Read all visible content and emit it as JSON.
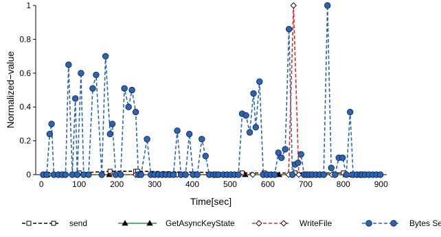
{
  "chart_data": {
    "type": "line",
    "title": "",
    "xlabel": "Time[sec]",
    "ylabel": "Normalized−value",
    "xlim": [
      -15,
      915
    ],
    "ylim": [
      0,
      1
    ],
    "xticks": [
      0,
      100,
      200,
      300,
      400,
      500,
      600,
      700,
      800,
      900
    ],
    "yticks": [
      0,
      0.2,
      0.4,
      0.6,
      0.8,
      1
    ],
    "ytick_labels": [
      "0",
      "0.2",
      "0.4",
      "0.6",
      "0.8",
      "1"
    ],
    "grid": false,
    "legend_position": "bottom",
    "series": [
      {
        "name": "send",
        "color": "#000000",
        "dash": "dashed",
        "marker": "square",
        "x": [
          100,
          182,
          250,
          255,
          532,
          590,
          672,
          800
        ],
        "y": [
          0.01,
          0.02,
          0.02,
          0.02,
          0.01,
          0.01,
          0.01,
          0.01
        ]
      },
      {
        "name": "GetAsyncKeyState",
        "color": "#1a9a3a",
        "dash": "solid",
        "marker": "triangle",
        "x": [
          10,
          90,
          180,
          260,
          350,
          450,
          540,
          630,
          720,
          810,
          890
        ],
        "y": [
          0,
          0,
          0,
          0,
          0,
          0,
          0,
          0,
          0,
          0,
          0
        ]
      },
      {
        "name": "WriteFile",
        "color": "#e8281e",
        "dash": "dashed",
        "marker": "diamond",
        "x": [
          20,
          60,
          110,
          160,
          210,
          250,
          300,
          360,
          410,
          460,
          510,
          560,
          610,
          655,
          668,
          682,
          720,
          770,
          820,
          870
        ],
        "y": [
          0,
          0,
          0,
          0,
          0,
          0,
          0,
          0,
          0,
          0,
          0,
          0,
          0,
          0,
          1.0,
          0,
          0,
          0,
          0,
          0
        ]
      },
      {
        "name": "Bytes Sent",
        "color": "#2a64b4",
        "dash": "dashed",
        "marker": "circle",
        "x": [
          5,
          14,
          22,
          27,
          33,
          45,
          55,
          64,
          72,
          82,
          90,
          95,
          105,
          112,
          125,
          136,
          145,
          160,
          170,
          182,
          188,
          197,
          210,
          220,
          231,
          240,
          250,
          257,
          264,
          280,
          290,
          300,
          310,
          320,
          330,
          340,
          350,
          360,
          370,
          382,
          392,
          402,
          413,
          425,
          435,
          445,
          456,
          463,
          470,
          482,
          492,
          502,
          512,
          522,
          532,
          542,
          552,
          562,
          568,
          578,
          588,
          598,
          608,
          618,
          628,
          636,
          646,
          656,
          665,
          672,
          680,
          688,
          696,
          703,
          710,
          718,
          728,
          738,
          748,
          758,
          768,
          778,
          788,
          798,
          808,
          818,
          826,
          836,
          845,
          850,
          858,
          868,
          878,
          888,
          898
        ],
        "y": [
          0,
          0,
          0.24,
          0.3,
          0,
          0,
          0,
          0,
          0.65,
          0,
          0.45,
          0,
          0.6,
          0,
          0,
          0.51,
          0.59,
          0,
          0.7,
          0.24,
          0.3,
          0,
          0,
          0.51,
          0.4,
          0.5,
          0.37,
          0,
          0,
          0.21,
          0,
          0,
          0,
          0,
          0,
          0,
          0,
          0.26,
          0,
          0,
          0.24,
          0,
          0,
          0.21,
          0.11,
          0,
          0,
          0,
          0,
          0,
          0,
          0,
          0,
          0,
          0.36,
          0.35,
          0.25,
          0.48,
          0.28,
          0.55,
          0,
          0,
          0,
          0,
          0.13,
          0.1,
          0.15,
          0.86,
          0,
          0.06,
          0.07,
          0.12,
          0,
          0,
          0,
          0,
          0,
          0,
          0,
          1.0,
          0.04,
          0,
          0.1,
          0.1,
          0,
          0.37,
          0,
          0,
          0,
          0,
          0,
          0,
          0,
          0,
          0
        ]
      }
    ]
  }
}
